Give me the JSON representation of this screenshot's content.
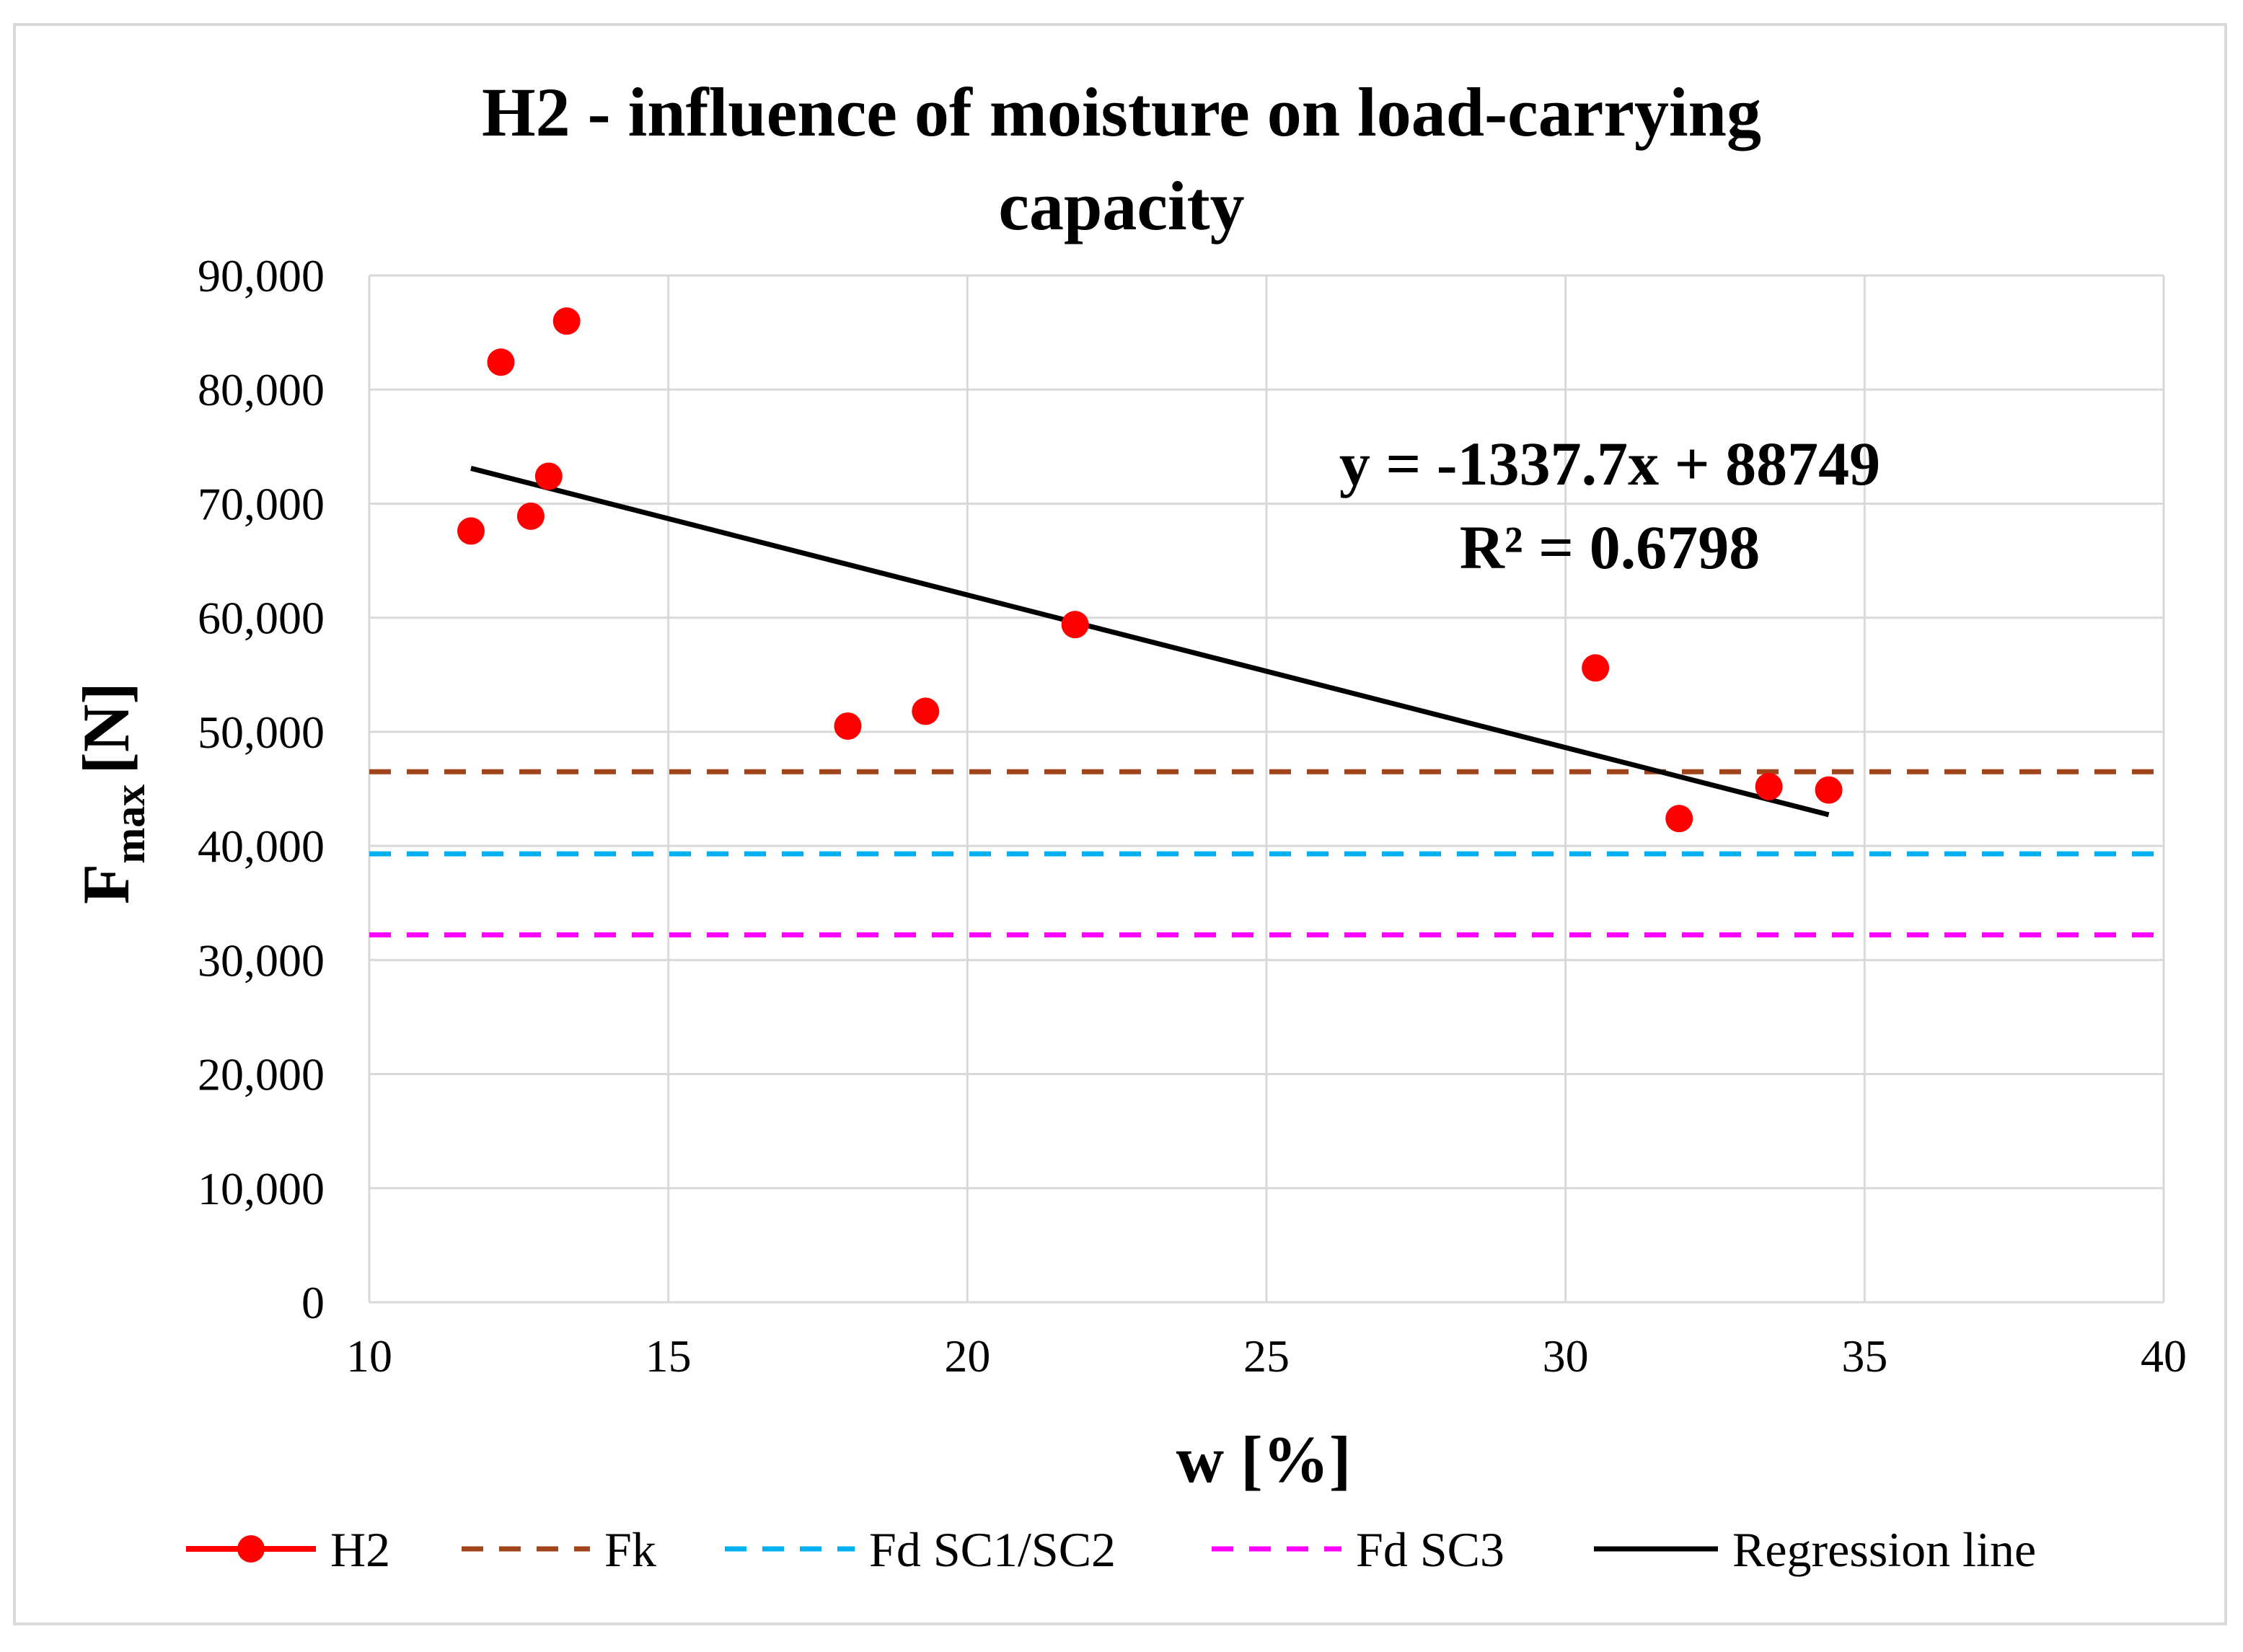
{
  "chart_data": {
    "type": "scatter",
    "title_lines": [
      "H2 - influence of moisture on load-carrying",
      "capacity"
    ],
    "xlabel": "w [%]",
    "ylabel_main": "F",
    "ylabel_sub": "max",
    "ylabel_unit": "[N]",
    "xlim": [
      10,
      40
    ],
    "ylim": [
      0,
      90000
    ],
    "x_ticks": [
      10,
      15,
      20,
      25,
      30,
      35,
      40
    ],
    "y_ticks": [
      0,
      10000,
      20000,
      30000,
      40000,
      50000,
      60000,
      70000,
      80000,
      90000
    ],
    "x_tick_labels": [
      "10",
      "15",
      "20",
      "25",
      "30",
      "35",
      "40"
    ],
    "y_tick_labels": [
      "0",
      "10,000",
      "20,000",
      "30,000",
      "40,000",
      "50,000",
      "60,000",
      "70,000",
      "80,000",
      "90,000"
    ],
    "grid": true,
    "series": [
      {
        "name": "H2",
        "kind": "scatter",
        "color": "#ff0000",
        "x": [
          11.7,
          12.2,
          12.7,
          13.0,
          13.3,
          18.0,
          19.3,
          21.8,
          30.5,
          31.9,
          33.4,
          34.4
        ],
        "y": [
          67600,
          82400,
          68900,
          72400,
          86000,
          50500,
          51800,
          59400,
          55600,
          42400,
          45200,
          44900
        ]
      },
      {
        "name": "Fk",
        "kind": "hline",
        "color": "#a0441b",
        "dashed": true,
        "y": 46500
      },
      {
        "name": "Fd SC1/SC2",
        "kind": "hline",
        "color": "#00b0f0",
        "dashed": true,
        "y": 39300
      },
      {
        "name": "Fd SC3",
        "kind": "hline",
        "color": "#ff00ff",
        "dashed": true,
        "y": 32200
      },
      {
        "name": "Regression line",
        "kind": "line",
        "color": "#000000",
        "x": [
          11.7,
          34.4
        ],
        "y": [
          73098,
          42733
        ]
      }
    ],
    "annotation": {
      "equation": "y = -1337.7x + 88749",
      "r_squared": "R² = 0.6798"
    },
    "legend_position": "bottom"
  }
}
